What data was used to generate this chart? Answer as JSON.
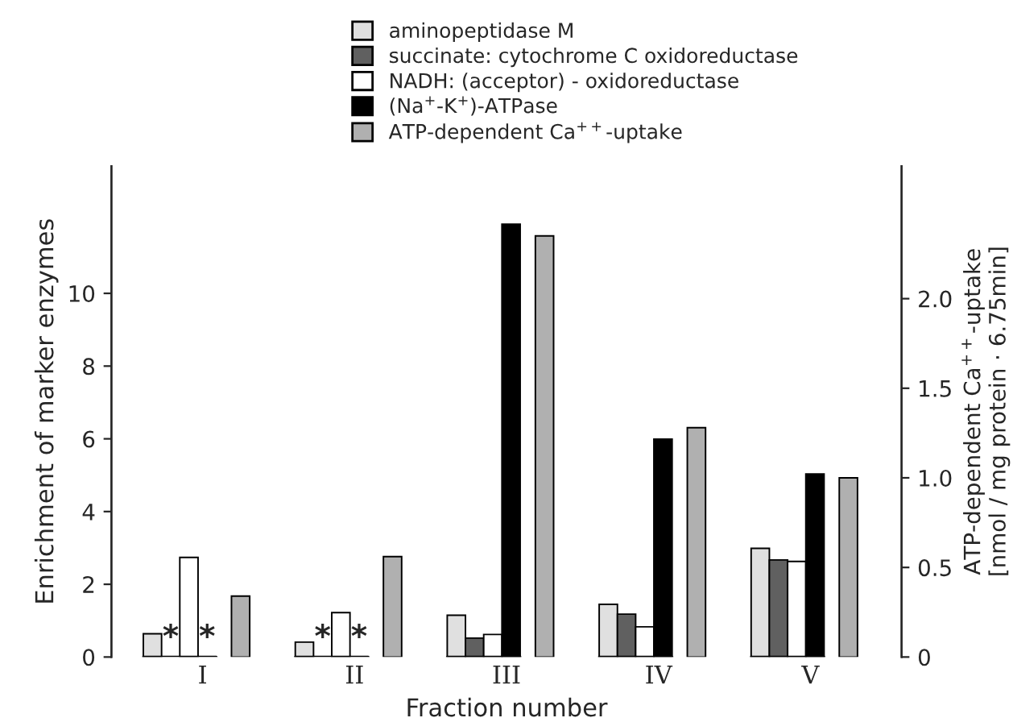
{
  "chart_data": {
    "type": "bar",
    "xlabel": "Fraction number",
    "ylabel": "Enrichment of marker enzymes",
    "y2label": "ATP-dependent Ca$^{++}$-uptake\n[nmol / mg protein · 6.75min]",
    "categories": [
      "I",
      "II",
      "III",
      "IV",
      "V"
    ],
    "series": [
      {
        "name": "aminopeptidase M",
        "color": "#e0e0e0",
        "values": [
          0.64,
          0.41,
          1.15,
          1.45,
          2.99
        ]
      },
      {
        "name": "succinate: cytochrome C oxidoreductase",
        "color": "#606060",
        "values": [
          null,
          null,
          0.52,
          1.18,
          2.67
        ]
      },
      {
        "name": "NADH: (acceptor) - oxidoreductase",
        "color": "#ffffff",
        "values": [
          2.74,
          1.22,
          0.62,
          0.83,
          2.63
        ]
      },
      {
        "name": "(Na$^{+}$-K$^{+}$)-ATPase",
        "color": "#000000",
        "values": [
          null,
          null,
          11.9,
          5.99,
          5.03
        ]
      },
      {
        "name": "ATP-dependent Ca$^{++}$-uptake",
        "color": "#b0b0b0",
        "axis": "y2",
        "values": [
          0.34,
          0.56,
          2.35,
          1.28,
          1.0
        ]
      }
    ],
    "ylim": [
      0,
      13.5
    ],
    "yticks": [
      0,
      2,
      4,
      6,
      8,
      10
    ],
    "y2lim": [
      0,
      2.74
    ],
    "y2ticks": [
      0,
      0.5,
      {
        "value": 1,
        "label": "1.0"
      },
      1.5,
      {
        "value": 2,
        "label": "2.0"
      }
    ],
    "annotations": [
      {
        "text": "*",
        "x": "I",
        "y": 0
      },
      {
        "text": "*",
        "x": "I",
        "y": 0
      },
      {
        "text": "*",
        "x": "II",
        "y": 0
      },
      {
        "text": "*",
        "x": "II",
        "y": 0
      }
    ],
    "legend": "top",
    "grid": false
  }
}
